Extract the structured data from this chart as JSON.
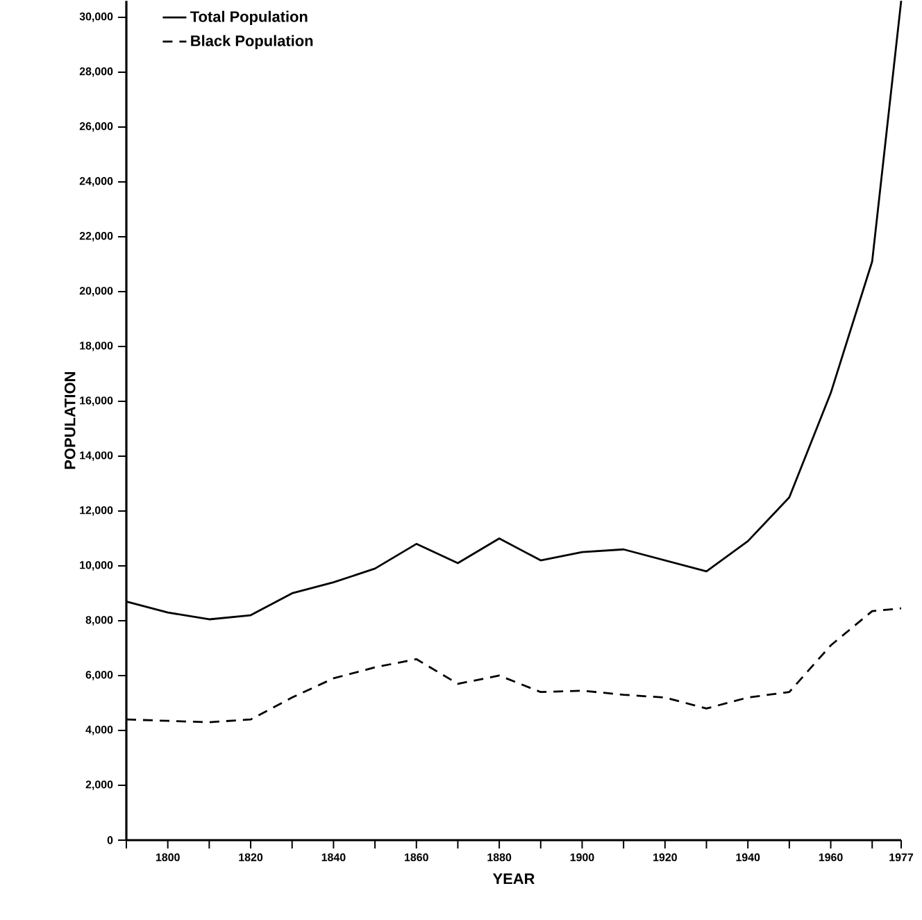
{
  "chart_data": {
    "type": "line",
    "xlabel": "YEAR",
    "ylabel": "POPULATION",
    "x": [
      1790,
      1800,
      1810,
      1820,
      1830,
      1840,
      1850,
      1860,
      1870,
      1880,
      1890,
      1900,
      1910,
      1920,
      1930,
      1940,
      1950,
      1960,
      1970,
      1977
    ],
    "series": [
      {
        "name": "Total Population",
        "color": "#000000",
        "line_style": "solid",
        "values": [
          8700,
          8300,
          8050,
          8200,
          9000,
          9400,
          9900,
          10800,
          10100,
          11000,
          10200,
          10500,
          10600,
          10200,
          9800,
          10900,
          12500,
          16300,
          21100,
          30600
        ]
      },
      {
        "name": "Black Population",
        "color": "#000000",
        "line_style": "dashed",
        "values": [
          4400,
          4350,
          4300,
          4400,
          5200,
          5900,
          6300,
          6600,
          5700,
          6000,
          5400,
          5450,
          5300,
          5200,
          4800,
          5200,
          5400,
          7100,
          8350,
          8450
        ]
      }
    ],
    "xlim": [
      1790,
      1977
    ],
    "xticks": [
      {
        "value": 1790,
        "label": null
      },
      1800,
      {
        "value": 1810,
        "label": null
      },
      1820,
      {
        "value": 1830,
        "label": null
      },
      1840,
      {
        "value": 1850,
        "label": null
      },
      1860,
      {
        "value": 1870,
        "label": null
      },
      1880,
      {
        "value": 1890,
        "label": null
      },
      1900,
      {
        "value": 1910,
        "label": null
      },
      1920,
      {
        "value": 1930,
        "label": null
      },
      1940,
      {
        "value": 1950,
        "label": null
      },
      1960,
      {
        "value": 1970,
        "label": null
      },
      1977
    ],
    "ylim": [
      0,
      30600
    ],
    "yticks": [
      0,
      {
        "value": 2000,
        "label": "2,000"
      },
      {
        "value": 4000,
        "label": "4,000"
      },
      {
        "value": 6000,
        "label": "6,000"
      },
      {
        "value": 8000,
        "label": "8,000"
      },
      {
        "value": 10000,
        "label": "10,000"
      },
      {
        "value": 12000,
        "label": "12,000"
      },
      {
        "value": 14000,
        "label": "14,000"
      },
      {
        "value": 16000,
        "label": "16,000"
      },
      {
        "value": 18000,
        "label": "18,000"
      },
      {
        "value": 20000,
        "label": "20,000"
      },
      {
        "value": 22000,
        "label": "22,000"
      },
      {
        "value": 24000,
        "label": "24,000"
      },
      {
        "value": 26000,
        "label": "26,000"
      },
      {
        "value": 28000,
        "label": "28,000"
      },
      {
        "value": 30000,
        "label": "30,000"
      }
    ],
    "legend": "top left",
    "marker": "none",
    "grid": false
  }
}
